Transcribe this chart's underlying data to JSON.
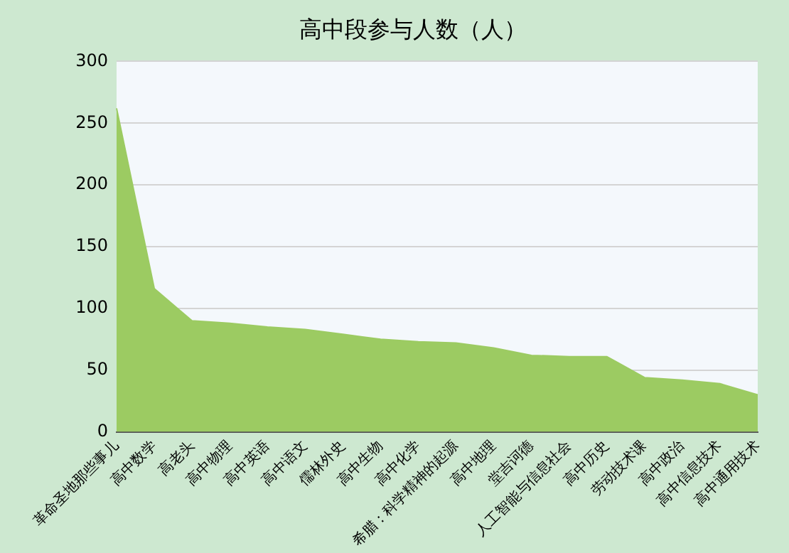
{
  "chart_data": {
    "type": "area",
    "title": "高中段参与人数（人）",
    "categories": [
      "革命圣地那些事儿",
      "高中数学",
      "高老头",
      "高中物理",
      "高中英语",
      "高中语文",
      "儒林外史",
      "高中生物",
      "高中化学",
      "希腊：科学精神的起源",
      "高中地理",
      "堂吉诃德",
      "人工智能与信息社会",
      "高中历史",
      "劳动技术课",
      "高中政治",
      "高中信息技术",
      "高中通用技术"
    ],
    "values": [
      262,
      116,
      90,
      88,
      85,
      83,
      79,
      75,
      73,
      72,
      68,
      62,
      61,
      61,
      44,
      42,
      39,
      30
    ],
    "color": "#9ccb62",
    "ylim": [
      0,
      300
    ],
    "yticks": [
      0,
      50,
      100,
      150,
      200,
      250,
      300
    ],
    "grid": "y",
    "legend": false
  }
}
